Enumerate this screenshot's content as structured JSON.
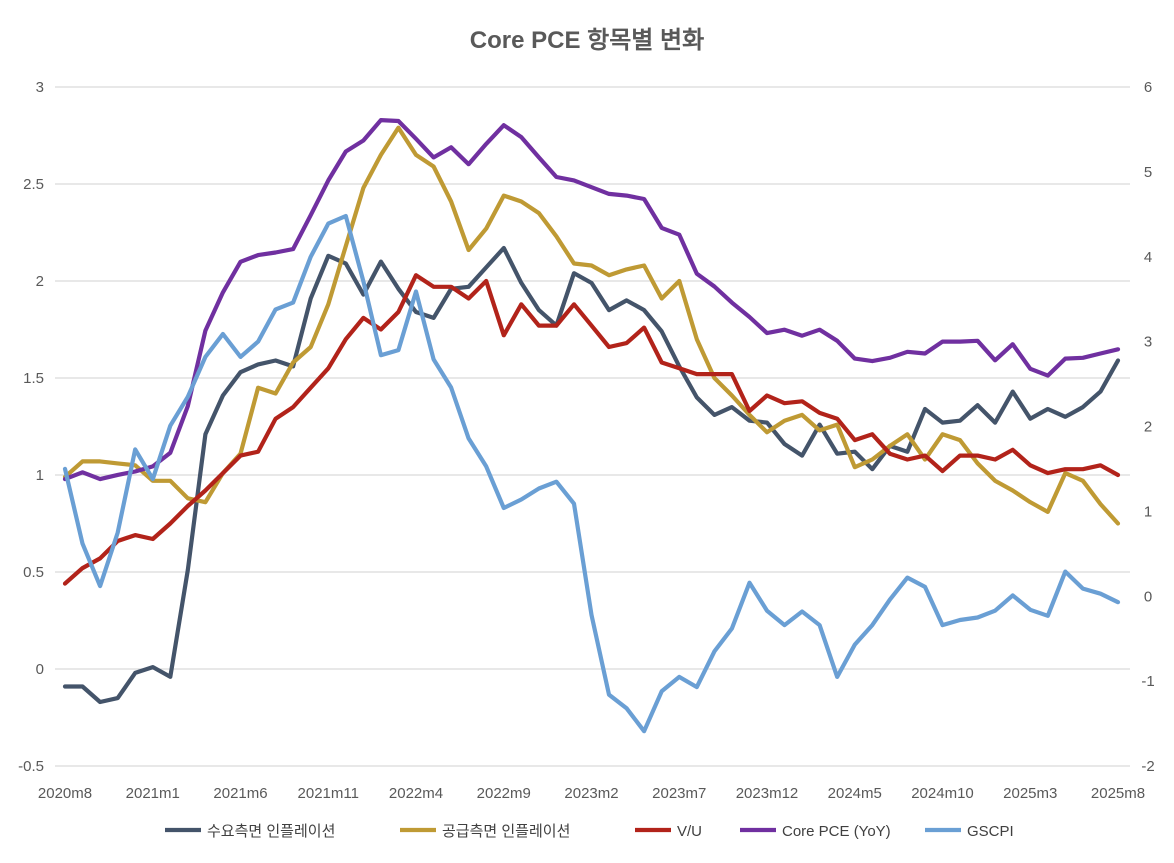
{
  "chart_data": {
    "type": "line",
    "title": "Core PCE 항목별 변화",
    "x_tick_labels": [
      "2020m8",
      "2021m1",
      "2021m6",
      "2021m11",
      "2022m4",
      "2022m9",
      "2023m2",
      "2023m7",
      "2023m12",
      "2024m5",
      "2024m10",
      "2025m3",
      "2025m8"
    ],
    "x_tick_every": 5,
    "y_left": {
      "range": [
        -0.5,
        3
      ],
      "step": 0.5,
      "tick_labels": [
        "-0.5",
        "0",
        "0.5",
        "1",
        "1.5",
        "2",
        "2.5",
        "3"
      ]
    },
    "y_right": {
      "range": [
        -2,
        6
      ],
      "step": 1,
      "tick_labels": [
        "-2",
        "-1",
        "0",
        "1",
        "2",
        "3",
        "4",
        "5",
        "6"
      ]
    },
    "grid": true,
    "legend_position": "bottom",
    "series": [
      {
        "name": "수요측면 인플레이션",
        "axis": "left",
        "color": "#44546A",
        "values": [
          -0.09,
          -0.09,
          -0.17,
          -0.15,
          -0.02,
          0.01,
          -0.04,
          0.51,
          1.21,
          1.41,
          1.53,
          1.57,
          1.59,
          1.56,
          1.91,
          2.13,
          2.09,
          1.93,
          2.1,
          1.96,
          1.84,
          1.81,
          1.96,
          1.97,
          2.07,
          2.17,
          1.99,
          1.85,
          1.77,
          2.04,
          1.99,
          1.85,
          1.9,
          1.85,
          1.74,
          1.56,
          1.4,
          1.31,
          1.35,
          1.28,
          1.27,
          1.16,
          1.1,
          1.26,
          1.11,
          1.12,
          1.03,
          1.15,
          1.12,
          1.34,
          1.27,
          1.28,
          1.36,
          1.27,
          1.43,
          1.29,
          1.34,
          1.3,
          1.35,
          1.43,
          1.59
        ]
      },
      {
        "name": "공급측면 인플레이션",
        "axis": "left",
        "color": "#BF9A34",
        "values": [
          0.99,
          1.07,
          1.07,
          1.06,
          1.05,
          0.97,
          0.97,
          0.88,
          0.86,
          1.01,
          1.11,
          1.45,
          1.42,
          1.58,
          1.66,
          1.88,
          2.18,
          2.48,
          2.65,
          2.79,
          2.65,
          2.59,
          2.41,
          2.16,
          2.27,
          2.44,
          2.41,
          2.35,
          2.23,
          2.09,
          2.08,
          2.03,
          2.06,
          2.08,
          1.91,
          2.0,
          1.7,
          1.5,
          1.41,
          1.31,
          1.22,
          1.28,
          1.31,
          1.23,
          1.26,
          1.04,
          1.08,
          1.15,
          1.21,
          1.08,
          1.21,
          1.18,
          1.06,
          0.97,
          0.92,
          0.86,
          0.81,
          1.01,
          0.97,
          0.85,
          0.75
        ]
      },
      {
        "name": "V/U",
        "axis": "left",
        "color": "#B2231A",
        "values": [
          0.44,
          0.52,
          0.57,
          0.66,
          0.69,
          0.67,
          0.75,
          0.84,
          0.92,
          1.01,
          1.1,
          1.12,
          1.29,
          1.35,
          1.45,
          1.55,
          1.7,
          1.81,
          1.75,
          1.84,
          2.03,
          1.97,
          1.97,
          1.91,
          2.0,
          1.72,
          1.88,
          1.77,
          1.77,
          1.88,
          1.77,
          1.66,
          1.68,
          1.76,
          1.58,
          1.55,
          1.52,
          1.52,
          1.52,
          1.33,
          1.41,
          1.37,
          1.38,
          1.32,
          1.29,
          1.18,
          1.21,
          1.11,
          1.08,
          1.1,
          1.02,
          1.1,
          1.1,
          1.08,
          1.13,
          1.05,
          1.01,
          1.03,
          1.03,
          1.05,
          1.0
        ]
      },
      {
        "name": "Core PCE (YoY)",
        "axis": "right",
        "color": "#7030A0",
        "values": [
          1.38,
          1.46,
          1.38,
          1.43,
          1.47,
          1.53,
          1.69,
          2.24,
          3.13,
          3.58,
          3.94,
          4.02,
          4.05,
          4.09,
          4.49,
          4.9,
          5.24,
          5.37,
          5.61,
          5.6,
          5.39,
          5.17,
          5.29,
          5.09,
          5.33,
          5.55,
          5.41,
          5.17,
          4.94,
          4.9,
          4.82,
          4.74,
          4.72,
          4.68,
          4.34,
          4.26,
          3.8,
          3.65,
          3.46,
          3.29,
          3.1,
          3.14,
          3.07,
          3.14,
          3.01,
          2.8,
          2.77,
          2.81,
          2.88,
          2.86,
          3.0,
          3.0,
          3.01,
          2.78,
          2.97,
          2.68,
          2.6,
          2.8,
          2.81,
          2.86,
          2.91
        ]
      },
      {
        "name": "GSCPI",
        "axis": "right",
        "color": "#6A9FD4",
        "values": [
          1.5,
          0.62,
          0.12,
          0.75,
          1.73,
          1.38,
          2.01,
          2.35,
          2.82,
          3.09,
          2.82,
          3.0,
          3.38,
          3.46,
          4.0,
          4.39,
          4.48,
          3.71,
          2.84,
          2.9,
          3.59,
          2.79,
          2.46,
          1.86,
          1.53,
          1.04,
          1.14,
          1.27,
          1.35,
          1.09,
          -0.22,
          -1.16,
          -1.32,
          -1.59,
          -1.12,
          -0.95,
          -1.07,
          -0.65,
          -0.38,
          0.16,
          -0.17,
          -0.34,
          -0.18,
          -0.34,
          -0.95,
          -0.57,
          -0.34,
          -0.04,
          0.22,
          0.11,
          -0.34,
          -0.28,
          -0.25,
          -0.17,
          0.01,
          -0.16,
          -0.23,
          0.29,
          0.09,
          0.03,
          -0.07
        ]
      }
    ]
  }
}
